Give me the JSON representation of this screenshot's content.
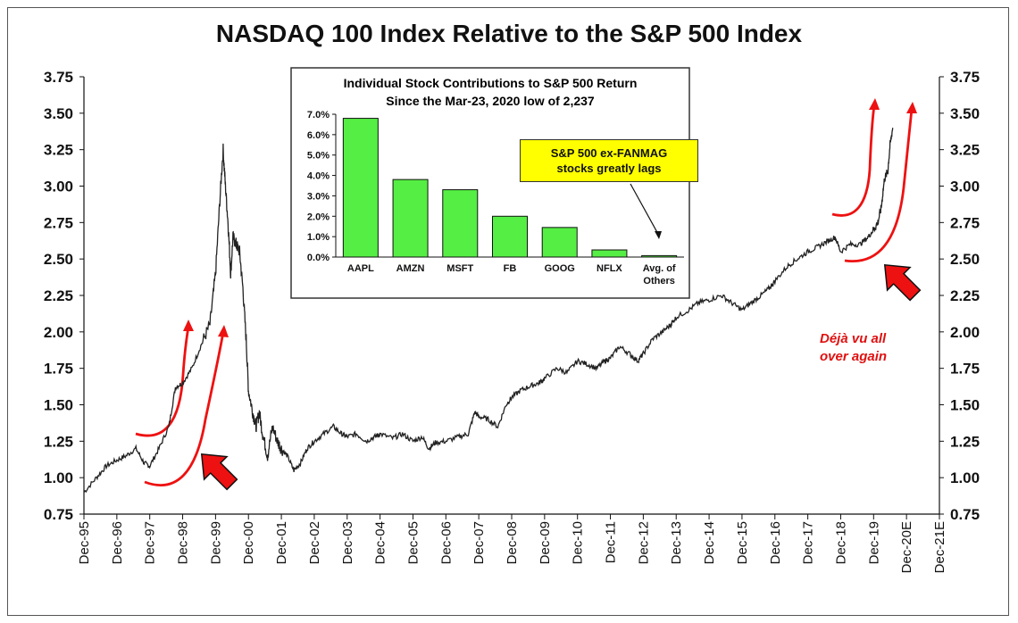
{
  "chart_data": [
    {
      "type": "line",
      "title": "NASDAQ 100 Index Relative to the S&P 500 Index",
      "ylim": [
        0.75,
        3.75
      ],
      "y_ticks": [
        "0.75",
        "1.00",
        "1.25",
        "1.50",
        "1.75",
        "2.00",
        "2.25",
        "2.50",
        "2.75",
        "3.00",
        "3.25",
        "3.50",
        "3.75"
      ],
      "x_ticks": [
        "Dec-95",
        "Dec-96",
        "Dec-97",
        "Dec-98",
        "Dec-99",
        "Dec-00",
        "Dec-01",
        "Dec-02",
        "Dec-03",
        "Dec-04",
        "Dec-05",
        "Dec-06",
        "Dec-07",
        "Dec-08",
        "Dec-09",
        "Dec-10",
        "Dec-11",
        "Dec-12",
        "Dec-13",
        "Dec-14",
        "Dec-15",
        "Dec-16",
        "Dec-17",
        "Dec-18",
        "Dec-19",
        "Dec-20E",
        "Dec-21E"
      ],
      "xlim": [
        1995.92,
        2021.92
      ],
      "grid": false,
      "series": [
        {
          "x": [
            1995.92,
            1996.3,
            1996.6,
            1996.92,
            1997.2,
            1997.5,
            1997.75,
            1997.92,
            1998.2,
            1998.5,
            1998.7,
            1998.92,
            1999.2,
            1999.5,
            1999.75,
            1999.92,
            2000.05,
            2000.15,
            2000.22,
            2000.3,
            2000.38,
            2000.45,
            2000.55,
            2000.65,
            2000.75,
            2000.85,
            2000.92,
            2001.05,
            2001.15,
            2001.25,
            2001.35,
            2001.5,
            2001.65,
            2001.8,
            2001.92,
            2002.1,
            2002.3,
            2002.5,
            2002.7,
            2002.92,
            2003.2,
            2003.5,
            2003.75,
            2003.92,
            2004.2,
            2004.5,
            2004.75,
            2004.92,
            2005.3,
            2005.6,
            2005.92,
            2006.2,
            2006.4,
            2006.6,
            2006.92,
            2007.3,
            2007.6,
            2007.8,
            2007.92,
            2008.2,
            2008.5,
            2008.75,
            2008.92,
            2009.2,
            2009.5,
            2009.75,
            2009.92,
            2010.3,
            2010.6,
            2010.92,
            2011.2,
            2011.5,
            2011.75,
            2011.92,
            2012.2,
            2012.5,
            2012.75,
            2012.92,
            2013.2,
            2013.5,
            2013.75,
            2013.92,
            2014.3,
            2014.6,
            2014.92,
            2015.3,
            2015.6,
            2015.92,
            2016.2,
            2016.5,
            2016.75,
            2016.92,
            2017.3,
            2017.6,
            2017.92,
            2018.2,
            2018.5,
            2018.75,
            2018.92,
            2019.2,
            2019.5,
            2019.75,
            2019.92,
            2020.05,
            2020.15,
            2020.25,
            2020.35,
            2020.42,
            2020.5
          ],
          "y": [
            0.9,
            1.0,
            1.08,
            1.12,
            1.15,
            1.2,
            1.1,
            1.08,
            1.2,
            1.35,
            1.62,
            1.65,
            1.75,
            1.92,
            2.05,
            2.4,
            2.9,
            3.25,
            3.0,
            2.75,
            2.4,
            2.65,
            2.6,
            2.55,
            2.3,
            1.95,
            1.6,
            1.45,
            1.35,
            1.45,
            1.3,
            1.15,
            1.35,
            1.25,
            1.2,
            1.15,
            1.05,
            1.1,
            1.2,
            1.25,
            1.3,
            1.35,
            1.3,
            1.28,
            1.3,
            1.25,
            1.28,
            1.3,
            1.27,
            1.3,
            1.25,
            1.28,
            1.2,
            1.24,
            1.25,
            1.28,
            1.3,
            1.45,
            1.42,
            1.4,
            1.35,
            1.5,
            1.55,
            1.6,
            1.63,
            1.65,
            1.68,
            1.75,
            1.72,
            1.8,
            1.78,
            1.75,
            1.8,
            1.82,
            1.9,
            1.85,
            1.8,
            1.85,
            1.95,
            2.0,
            2.05,
            2.1,
            2.15,
            2.2,
            2.22,
            2.25,
            2.2,
            2.15,
            2.2,
            2.25,
            2.3,
            2.35,
            2.45,
            2.5,
            2.55,
            2.58,
            2.62,
            2.65,
            2.55,
            2.6,
            2.6,
            2.65,
            2.7,
            2.75,
            2.85,
            3.05,
            3.1,
            3.28,
            3.4
          ]
        }
      ]
    },
    {
      "type": "bar",
      "title": "Individual Stock Contributions to S&P 500 Return",
      "subtitle": "Since the Mar-23, 2020 low of 2,237",
      "categories": [
        "AAPL",
        "AMZN",
        "MSFT",
        "FB",
        "GOOG",
        "NFLX",
        "Avg. of Others"
      ],
      "values": [
        6.8,
        3.8,
        3.3,
        2.0,
        1.45,
        0.35,
        0.07
      ],
      "ylim": [
        0,
        7
      ],
      "y_ticks": [
        "0.0%",
        "1.0%",
        "2.0%",
        "3.0%",
        "4.0%",
        "5.0%",
        "6.0%",
        "7.0%"
      ],
      "bar_color": "#55ee44",
      "grid": false
    }
  ],
  "annotations": {
    "callout_line1": "S&P 500 ex-FANMAG",
    "callout_line2": "stocks greatly lags",
    "deja_line1": "Déjà vu all",
    "deja_line2": "over again",
    "arrow_color": "#ee1111"
  }
}
